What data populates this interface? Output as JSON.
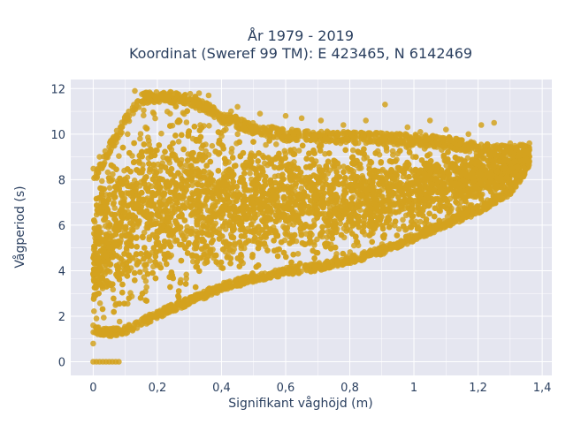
{
  "chart_data": {
    "type": "scatter",
    "title_line1": "År 1979 - 2019",
    "title_line2": "Koordinat (Sweref 99 TM): E 423465, N 6142469",
    "xlabel": "Signifikant våghöjd (m)",
    "ylabel": "Vågperiod (s)",
    "xlim": [
      -0.07,
      1.43
    ],
    "ylim": [
      -0.6,
      12.4
    ],
    "x_ticks": [
      0,
      0.2,
      0.4,
      0.6,
      0.8,
      1,
      1.2,
      1.4
    ],
    "x_tick_labels": [
      "0",
      "0,2",
      "0,4",
      "0,6",
      "0,8",
      "1",
      "1,2",
      "1,4"
    ],
    "y_ticks": [
      0,
      2,
      4,
      6,
      8,
      10,
      12
    ],
    "y_tick_labels": [
      "0",
      "2",
      "4",
      "6",
      "8",
      "10",
      "12"
    ],
    "grid": true,
    "marker_color": "#d4a21f",
    "plot_bg": "#e5e6f0",
    "envelope": {
      "description_points_upper": [
        [
          0.01,
          8.5
        ],
        [
          0.05,
          9.6
        ],
        [
          0.1,
          10.8
        ],
        [
          0.15,
          11.8
        ],
        [
          0.2,
          11.9
        ],
        [
          0.3,
          11.8
        ],
        [
          0.4,
          11.0
        ],
        [
          0.5,
          10.5
        ],
        [
          0.6,
          10.2
        ],
        [
          0.8,
          10.1
        ],
        [
          1.0,
          10.0
        ],
        [
          1.1,
          9.9
        ],
        [
          1.2,
          9.6
        ],
        [
          1.3,
          9.5
        ],
        [
          1.36,
          9.6
        ]
      ],
      "description_points_lower": [
        [
          0.0,
          1.2
        ],
        [
          0.05,
          1.1
        ],
        [
          0.1,
          1.2
        ],
        [
          0.2,
          1.9
        ],
        [
          0.3,
          2.5
        ],
        [
          0.4,
          3.1
        ],
        [
          0.5,
          3.5
        ],
        [
          0.6,
          3.8
        ],
        [
          0.7,
          4.0
        ],
        [
          0.8,
          4.3
        ],
        [
          0.9,
          4.7
        ],
        [
          1.0,
          5.3
        ],
        [
          1.1,
          5.9
        ],
        [
          1.2,
          6.5
        ],
        [
          1.3,
          7.3
        ],
        [
          1.36,
          8.5
        ]
      ]
    },
    "zero_period_points": [
      [
        0.0,
        0
      ],
      [
        0.01,
        0
      ],
      [
        0.02,
        0
      ],
      [
        0.03,
        0
      ],
      [
        0.04,
        0
      ],
      [
        0.05,
        0
      ],
      [
        0.06,
        0
      ],
      [
        0.07,
        0
      ],
      [
        0.08,
        0
      ]
    ],
    "sample_points": [
      [
        0.13,
        11.9
      ],
      [
        0.16,
        11.8
      ],
      [
        0.22,
        11.5
      ],
      [
        0.33,
        11.8
      ],
      [
        0.36,
        11.7
      ],
      [
        0.45,
        11.2
      ],
      [
        0.52,
        10.9
      ],
      [
        0.6,
        10.8
      ],
      [
        0.62,
        10.2
      ],
      [
        0.71,
        10.6
      ],
      [
        0.91,
        11.3
      ],
      [
        1.02,
        10.1
      ],
      [
        1.1,
        10.2
      ],
      [
        1.17,
        10.0
      ],
      [
        1.21,
        10.4
      ],
      [
        1.25,
        10.5
      ],
      [
        1.3,
        9.6
      ],
      [
        1.36,
        9.6
      ],
      [
        1.33,
        9.2
      ],
      [
        1.2,
        6.6
      ],
      [
        1.1,
        6.0
      ],
      [
        0.35,
        2.8
      ],
      [
        0.02,
        9.0
      ],
      [
        0.0,
        1.6
      ],
      [
        0.0,
        0.8
      ],
      [
        0.01,
        1.9
      ],
      [
        0.04,
        1.2
      ],
      [
        0.24,
        10.9
      ],
      [
        0.43,
        11.0
      ],
      [
        0.65,
        10.7
      ],
      [
        0.78,
        10.4
      ],
      [
        0.85,
        10.6
      ],
      [
        0.98,
        10.3
      ],
      [
        1.05,
        10.6
      ]
    ]
  }
}
